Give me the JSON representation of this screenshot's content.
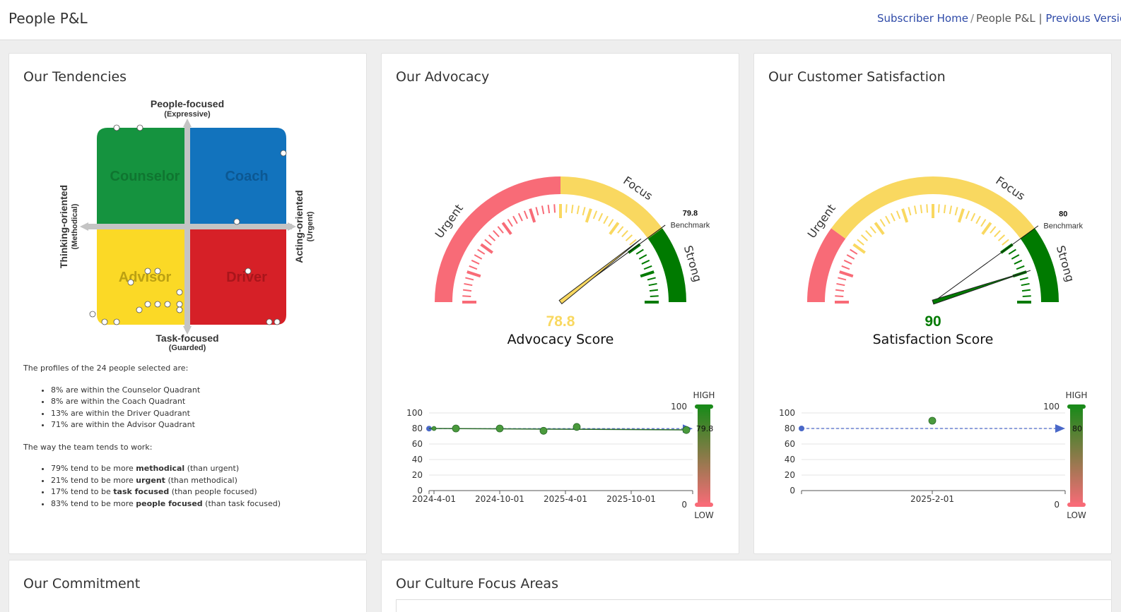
{
  "header": {
    "title": "People P&L",
    "breadcrumb": {
      "home": "Subscriber Home",
      "sep": "/",
      "current": "People P&L",
      "divider": "|",
      "previous": "Previous Version"
    }
  },
  "tendencies": {
    "title": "Our Tendencies",
    "axes": {
      "top": "People-focused",
      "top_sub": "(Expressive)",
      "bottom": "Task-focused",
      "bottom_sub": "(Guarded)",
      "left": "Thinking-oriented",
      "left_sub": "(Methodical)",
      "right": "Acting-oriented",
      "right_sub": "(Urgent)"
    },
    "quadrants": {
      "counselor": "Counselor",
      "coach": "Coach",
      "advisor": "Advisor",
      "driver": "Driver"
    },
    "colors": {
      "counselor": "#15933f",
      "coach": "#1273bd",
      "advisor": "#fbd926",
      "driver": "#d62027"
    },
    "intro": "The profiles of the 24 people selected are:",
    "profiles": [
      "8% are within the Counselor Quadrant",
      "8% are within the Coach Quadrant",
      "13% are within the Driver Quadrant",
      "71% are within the Advisor Quadrant"
    ],
    "work_intro": "The way the team tends to work:",
    "work": [
      {
        "pre": "79% tend to be more ",
        "bold": "methodical",
        "post": " (than urgent)"
      },
      {
        "pre": "21% tend to be more ",
        "bold": "urgent",
        "post": " (than methodical)"
      },
      {
        "pre": "17% tend to be ",
        "bold": "task focused",
        "post": " (than people focused)"
      },
      {
        "pre": "83% tend to be more ",
        "bold": "people focused",
        "post": " (than task focused)"
      }
    ]
  },
  "advocacy": {
    "title": "Our Advocacy",
    "score": 78.8,
    "score_text": "78.8",
    "score_label": "Advocacy Score",
    "score_color": "#f9d860",
    "benchmark": 79.8,
    "benchmark_text": "79.8",
    "benchmark_label": "Benchmark",
    "zones": {
      "urgent": "Urgent",
      "focus": "Focus",
      "strong": "Strong"
    },
    "zone_bounds": [
      0,
      50,
      80,
      100
    ],
    "trend": {
      "dates": [
        "2024-4-01",
        "2024-10-01",
        "2025-4-01",
        "2025-10-01"
      ],
      "y_ticks": [
        "0",
        "20",
        "40",
        "60",
        "80",
        "100"
      ],
      "points": [
        80,
        80,
        80,
        77,
        82,
        78
      ],
      "bar_top": "100",
      "bar_bottom": "0",
      "high": "HIGH",
      "low": "LOW",
      "marker": "79.8"
    }
  },
  "satisfaction": {
    "title": "Our Customer Satisfaction",
    "score": 90,
    "score_text": "90",
    "score_label": "Satisfaction Score",
    "score_color": "#007a00",
    "benchmark": 80,
    "benchmark_text": "80",
    "benchmark_label": "Benchmark",
    "zones": {
      "urgent": "Urgent",
      "focus": "Focus",
      "strong": "Strong"
    },
    "zone_bounds": [
      0,
      20,
      80,
      100
    ],
    "trend": {
      "dates": [
        "2025-2-01"
      ],
      "y_ticks": [
        "0",
        "20",
        "40",
        "60",
        "80",
        "100"
      ],
      "points": [
        90
      ],
      "bar_top": "100",
      "bar_bottom": "0",
      "high": "HIGH",
      "low": "LOW",
      "marker": "80"
    }
  },
  "commitment": {
    "title": "Our Commitment"
  },
  "culture": {
    "title": "Our Culture Focus Areas"
  }
}
